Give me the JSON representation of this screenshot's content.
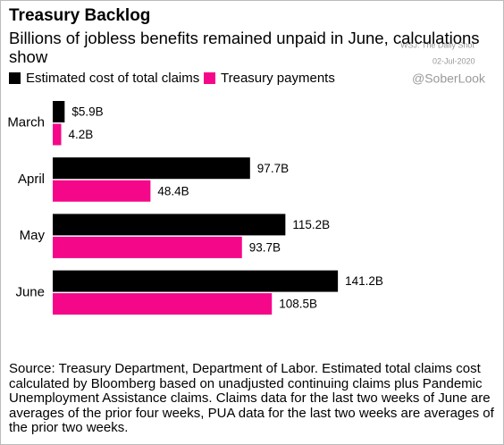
{
  "chart_data": {
    "type": "barh",
    "title": "Treasury Backlog",
    "subtitle": "Billions of jobless benefits remained unpaid in June, calculations show",
    "categories": [
      "March",
      "April",
      "May",
      "June"
    ],
    "series": [
      {
        "name": "Estimated cost of total claims",
        "color": "#000000",
        "values": [
          5.9,
          97.7,
          115.2,
          141.2
        ],
        "value_labels": [
          "$5.9B",
          "97.7B",
          "115.2B",
          "141.2B"
        ]
      },
      {
        "name": "Treasury payments",
        "color": "#f5078a",
        "values": [
          4.2,
          48.4,
          93.7,
          108.5
        ],
        "value_labels": [
          "4.2B",
          "48.4B",
          "93.7B",
          "108.5B"
        ]
      }
    ],
    "annotations": [
      "WSJ: The Daily Shot",
      "02-Jul-2020",
      "@SoberLook"
    ],
    "source": "Source: Treasury Department, Department of Labor. Estimated total claims cost calculated by Bloomberg based on unadjusted continuing claims plus Pandemic Unemployment Assistance claims. Claims data for the last two weeks of June are averages of the prior four weeks, PUA data for the last two weeks are averages of the prior two weeks."
  }
}
